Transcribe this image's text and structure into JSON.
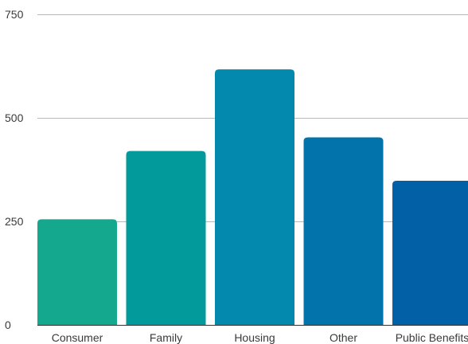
{
  "chart_data": {
    "type": "bar",
    "categories": [
      "Consumer",
      "Family",
      "Housing",
      "Other",
      "Public Benefits"
    ],
    "values": [
      255,
      420,
      617,
      453,
      348
    ],
    "colors": [
      "#14a98f",
      "#029a9a",
      "#0289ad",
      "#0274ab",
      "#0260a6"
    ],
    "yticks": [
      0,
      250,
      500,
      750
    ],
    "ytick_labels": [
      "0",
      "250",
      "500",
      "750"
    ],
    "ylim": [
      0,
      750
    ],
    "grid": true,
    "title": "",
    "xlabel": "",
    "ylabel": ""
  }
}
